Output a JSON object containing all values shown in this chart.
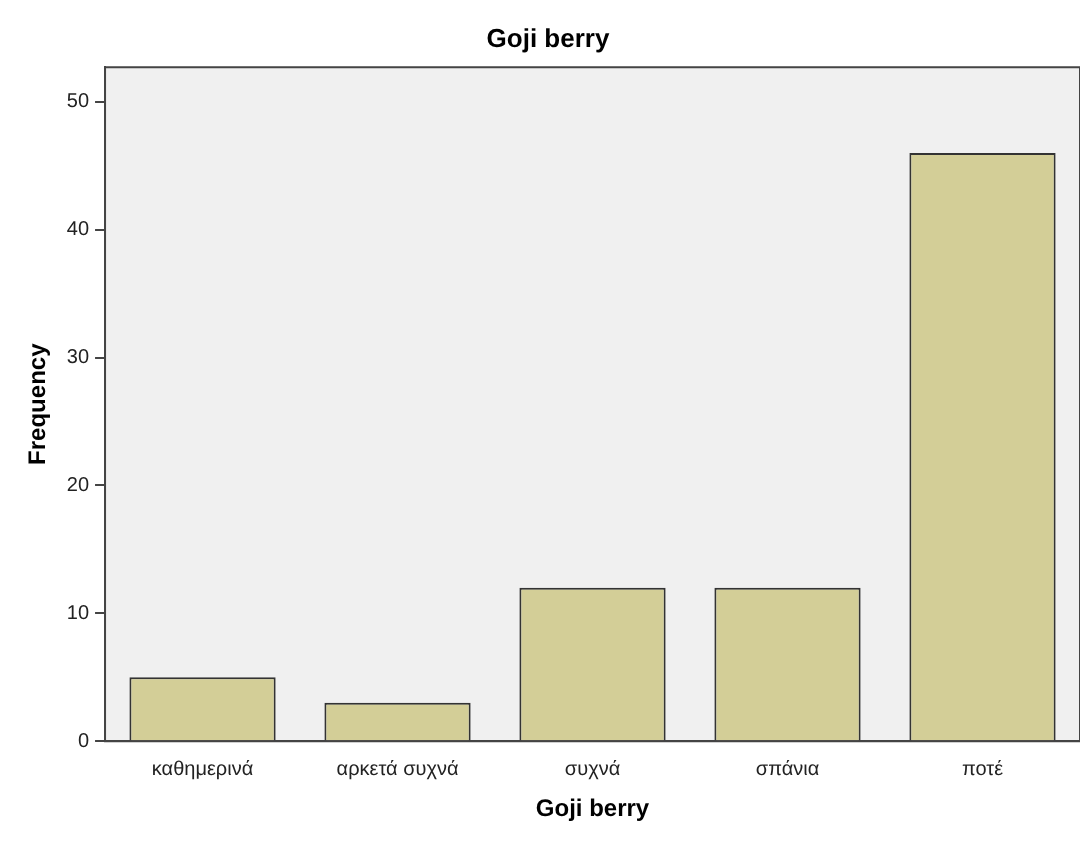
{
  "chart_data": {
    "type": "bar",
    "title": "Goji berry",
    "xlabel": "Goji berry",
    "ylabel": "Frequency",
    "categories": [
      "καθημερινά",
      "αρκετά συχνά",
      "συχνά",
      "σπάνια",
      "ποτέ"
    ],
    "values": [
      5,
      3,
      12,
      12,
      46
    ],
    "color": "#d3ce97",
    "ylim": [
      0,
      52.7
    ],
    "yticks": [
      0,
      10,
      20,
      30,
      40,
      50
    ],
    "grid": false,
    "legend": false
  }
}
